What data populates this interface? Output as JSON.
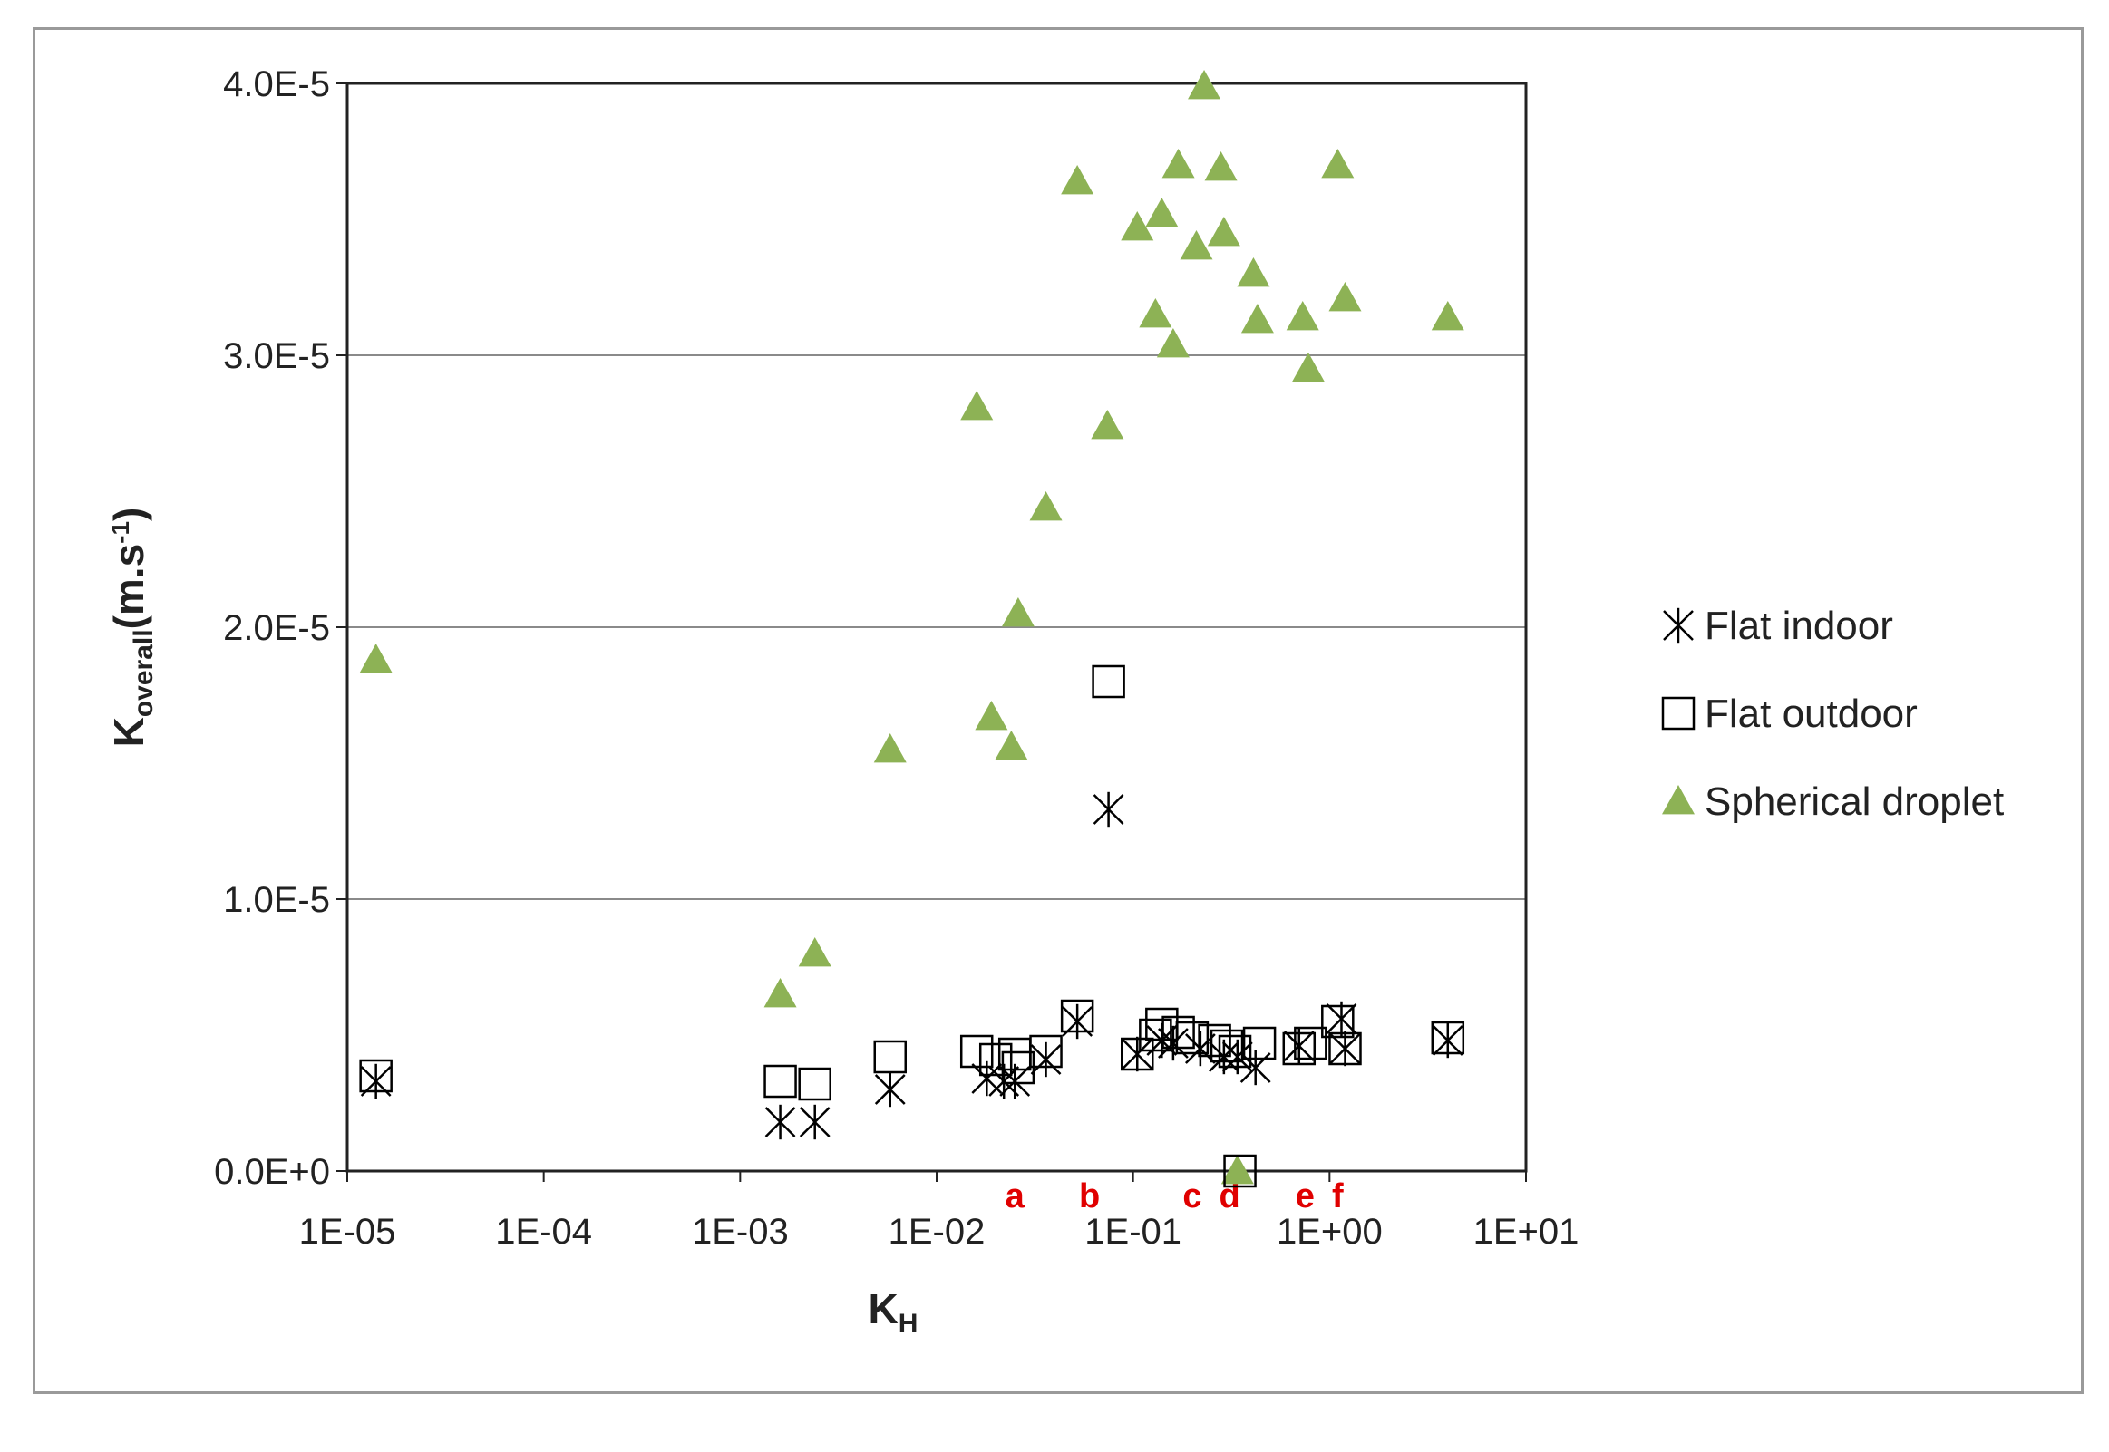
{
  "chart_data": {
    "type": "scatter",
    "x_scale": "log",
    "xlim": [
      1e-05,
      10
    ],
    "ylim": [
      0,
      4e-05
    ],
    "x_ticks": [
      "1E-05",
      "1E-04",
      "1E-03",
      "1E-02",
      "1E-01",
      "1E+00",
      "1E+01"
    ],
    "y_ticks": [
      "0.0E+0",
      "1.0E-5",
      "2.0E-5",
      "3.0E-5",
      "4.0E-5"
    ],
    "xlabel": {
      "main": "K",
      "sub": "H"
    },
    "ylabel": {
      "main": "K",
      "sub": "overall",
      "rest": "(m.s",
      "sup": "-1",
      "close": ")"
    },
    "grid": "horizontal",
    "legend_position": "right",
    "annotations": [
      {
        "text": "a",
        "x": 0.025
      },
      {
        "text": "b",
        "x": 0.06
      },
      {
        "text": "c",
        "x": 0.2
      },
      {
        "text": "d",
        "x": 0.31
      },
      {
        "text": "e",
        "x": 0.75
      },
      {
        "text": "f",
        "x": 1.1
      }
    ],
    "series": [
      {
        "name": "Flat indoor",
        "marker": "asterisk",
        "color": "#000000",
        "points": [
          [
            1.4e-05,
            3.3e-06
          ],
          [
            0.0016,
            1.8e-06
          ],
          [
            0.0024,
            1.8e-06
          ],
          [
            0.0058,
            3e-06
          ],
          [
            0.018,
            3.4e-06
          ],
          [
            0.022,
            3.3e-06
          ],
          [
            0.025,
            3.3e-06
          ],
          [
            0.036,
            4.1e-06
          ],
          [
            0.052,
            5.5e-06
          ],
          [
            0.075,
            1.33e-05
          ],
          [
            0.105,
            4.3e-06
          ],
          [
            0.14,
            4.8e-06
          ],
          [
            0.16,
            4.7e-06
          ],
          [
            0.22,
            4.5e-06
          ],
          [
            0.29,
            4.2e-06
          ],
          [
            0.34,
            4.2e-06
          ],
          [
            0.42,
            3.8e-06
          ],
          [
            0.7,
            4.6e-06
          ],
          [
            1.15,
            5.6e-06
          ],
          [
            1.2,
            4.5e-06
          ],
          [
            4.0,
            4.8e-06
          ]
        ]
      },
      {
        "name": "Flat outdoor",
        "marker": "square",
        "color": "#000000",
        "points": [
          [
            1.4e-05,
            3.5e-06
          ],
          [
            0.0016,
            3.3e-06
          ],
          [
            0.0024,
            3.2e-06
          ],
          [
            0.0058,
            4.2e-06
          ],
          [
            0.016,
            4.4e-06
          ],
          [
            0.02,
            4.1e-06
          ],
          [
            0.025,
            4.3e-06
          ],
          [
            0.026,
            3.8e-06
          ],
          [
            0.036,
            4.4e-06
          ],
          [
            0.052,
            5.7e-06
          ],
          [
            0.075,
            1.8e-05
          ],
          [
            0.105,
            4.3e-06
          ],
          [
            0.13,
            5e-06
          ],
          [
            0.14,
            5.4e-06
          ],
          [
            0.17,
            5.1e-06
          ],
          [
            0.2,
            4.9e-06
          ],
          [
            0.26,
            4.8e-06
          ],
          [
            0.3,
            4.6e-06
          ],
          [
            0.33,
            4.4e-06
          ],
          [
            0.35,
            0.0
          ],
          [
            0.44,
            4.7e-06
          ],
          [
            0.7,
            4.5e-06
          ],
          [
            0.8,
            4.7e-06
          ],
          [
            1.1,
            5.5e-06
          ],
          [
            1.2,
            4.5e-06
          ],
          [
            4.0,
            4.9e-06
          ]
        ]
      },
      {
        "name": "Spherical droplet",
        "marker": "triangle",
        "color": "#8db255",
        "points": [
          [
            1.4e-05,
            1.88e-05
          ],
          [
            0.0016,
            6.5e-06
          ],
          [
            0.0024,
            8e-06
          ],
          [
            0.0058,
            1.55e-05
          ],
          [
            0.016,
            2.81e-05
          ],
          [
            0.019,
            1.67e-05
          ],
          [
            0.024,
            1.56e-05
          ],
          [
            0.026,
            2.05e-05
          ],
          [
            0.036,
            2.44e-05
          ],
          [
            0.052,
            3.64e-05
          ],
          [
            0.074,
            2.74e-05
          ],
          [
            0.105,
            3.47e-05
          ],
          [
            0.13,
            3.15e-05
          ],
          [
            0.14,
            3.52e-05
          ],
          [
            0.16,
            3.04e-05
          ],
          [
            0.17,
            3.7e-05
          ],
          [
            0.21,
            3.4e-05
          ],
          [
            0.23,
            3.99e-05
          ],
          [
            0.28,
            3.69e-05
          ],
          [
            0.29,
            3.45e-05
          ],
          [
            0.34,
            0.0
          ],
          [
            0.41,
            3.3e-05
          ],
          [
            0.43,
            3.13e-05
          ],
          [
            0.73,
            3.14e-05
          ],
          [
            0.78,
            2.95e-05
          ],
          [
            1.1,
            3.7e-05
          ],
          [
            1.2,
            3.21e-05
          ],
          [
            4.0,
            3.14e-05
          ]
        ]
      }
    ]
  }
}
